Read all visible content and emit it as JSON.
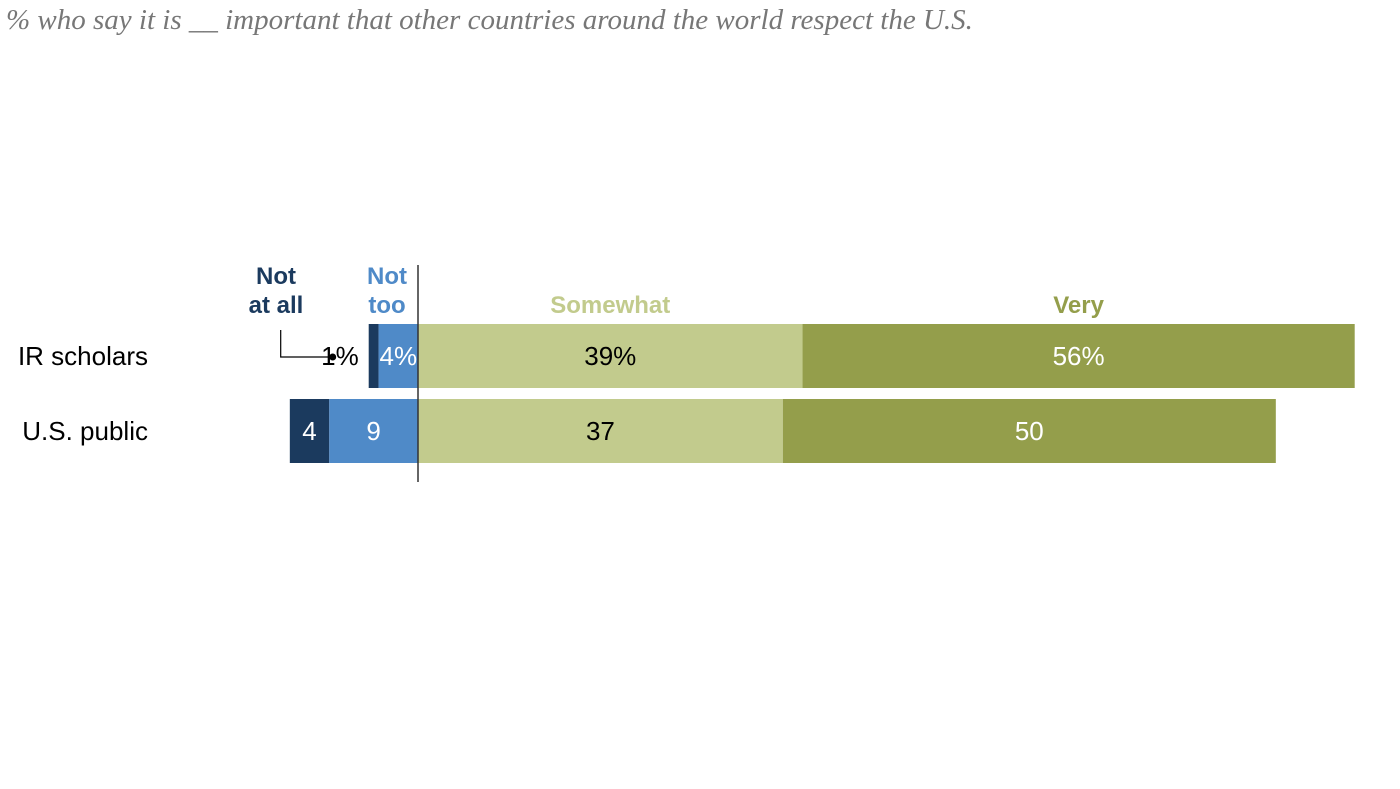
{
  "subtitle": "% who say it is __ important that other countries around the world respect the U.S.",
  "colors": {
    "not_at_all": "#1b3a5e",
    "not_too": "#4f8ac8",
    "somewhat": "#c2cb8d",
    "very": "#949e4b",
    "axis": "#333333"
  },
  "chart_data": {
    "type": "bar",
    "orientation": "horizontal",
    "stacked": "diverging",
    "categories": [
      "IR scholars",
      "U.S. public"
    ],
    "series": [
      {
        "name": "Not at all",
        "legend_lines": [
          "Not",
          "at all"
        ],
        "side": "negative",
        "values": [
          1,
          4
        ],
        "labels": [
          "1%",
          "4"
        ]
      },
      {
        "name": "Not too",
        "legend_lines": [
          "Not",
          "too"
        ],
        "side": "negative",
        "values": [
          4,
          9
        ],
        "labels": [
          "4%",
          "9"
        ]
      },
      {
        "name": "Somewhat",
        "legend_lines": [
          "Somewhat"
        ],
        "side": "positive",
        "values": [
          39,
          37
        ],
        "labels": [
          "39%",
          "37"
        ]
      },
      {
        "name": "Very",
        "legend_lines": [
          "Very"
        ],
        "side": "positive",
        "values": [
          56,
          50
        ],
        "labels": [
          "56%",
          "50"
        ]
      }
    ],
    "xlim": [
      -13,
      95
    ]
  }
}
